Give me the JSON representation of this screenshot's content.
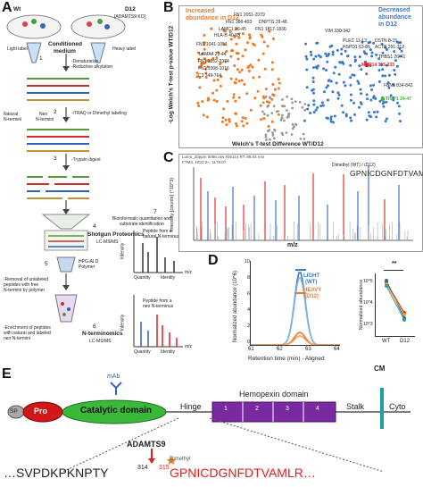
{
  "panels": {
    "A": "A",
    "B": "B",
    "C": "C",
    "D": "D",
    "E": "E"
  },
  "panel_a": {
    "wt": "Wt",
    "d12": "D12",
    "d12_sub": "[ADAMTS9 KO]",
    "light_label": "Light label",
    "heavy_label": "Heavy label",
    "conditioned": "Conditioned",
    "medium": "medium",
    "step1_a": "-Denaturation",
    "step1_b": "-Reductive alkylation",
    "step2": "-iTRAQ or Dimethyl labeling",
    "natural": "Natural",
    "nterm": "N-termini",
    "neo": "Neo",
    "neo_nterm": "N-termini",
    "step3": "-Trypsin digest",
    "num1": "1",
    "num2": "2",
    "num3": "3",
    "num4": "4",
    "num5": "5",
    "num6": "6",
    "num7": "7",
    "shotgun": "Shotgun Proteomics",
    "lcms1": "LC-MS/MS",
    "hpg": "HPG-ALD",
    "polymer": "Polymer",
    "removal1": "-Removal of unlabeled",
    "removal2": "peptides with free",
    "removal3": "N-termini by polymer",
    "enrich1": "-Enrichment of peptides",
    "enrich2": "with natural and labeled",
    "enrich3": "neo N-termini",
    "nterminomics": "N-terminomics",
    "lcms2": "LC-MS/MS",
    "bio1": "Bioinformatic quantitation and",
    "bio2": "substrate identification",
    "pep_free": "Peptide from a",
    "pep_free2": "natural N-terminus",
    "pep_neo": "Peptide from a",
    "pep_neo2": "neo N-terminus",
    "intensity": "Intensity",
    "quantity": "Quantity",
    "identity": "Identity",
    "mz": "m/z"
  },
  "panel_b": {
    "ylabel": "-Log Welch's T-test p-value WT/D12",
    "xlabel": "Welch's T-test Difference WT/D12",
    "inc1": "Increased",
    "inc2": "abundance in D12",
    "dec1": "Decreased",
    "dec2": "abundance",
    "dec3": "in D12",
    "labels": [
      {
        "t": "FN1 2051-2079",
        "c": "#111111"
      },
      {
        "t": "FN1 388-403",
        "c": "#111111"
      },
      {
        "t": "LAMC1 36-45",
        "c": "#111111"
      },
      {
        "t": "HLA-B 40-55",
        "c": "#111111"
      },
      {
        "t": "DNPTG 29-48",
        "c": "#111111"
      },
      {
        "t": "FN1 1817-1836",
        "c": "#111111"
      },
      {
        "t": "FN1 1041-1051",
        "c": "#111111"
      },
      {
        "t": "LAMA4 23-44",
        "c": "#111111"
      },
      {
        "t": "FN1 2352-2374",
        "c": "#111111"
      },
      {
        "t": "FN1 1008-1016",
        "c": "#111111"
      },
      {
        "t": "C3 749-764",
        "c": "#111111"
      },
      {
        "t": "VIM 330-342",
        "c": "#111111"
      },
      {
        "t": "PLEC 11-13",
        "c": "#111111"
      },
      {
        "t": "HSPD1 63-85",
        "c": "#111111"
      },
      {
        "t": "DSTN 8-15",
        "c": "#111111"
      },
      {
        "t": "ACTB 291-312",
        "c": "#111111"
      },
      {
        "t": "THBS1 26-41",
        "c": "#111111"
      },
      {
        "t": "MMP14 315-333",
        "c": "#e02020"
      },
      {
        "t": "FBN1 834-842",
        "c": "#111111"
      },
      {
        "t": "TIMP1 24-47",
        "c": "#30c030"
      }
    ]
  },
  "panel_c": {
    "ylabel": "Intensity [counts] (*10^3)",
    "xlabel": "m/z",
    "header1": "Lumo_20ppm 0066.raw  #25114  RT: 85.04 min",
    "header2": "FTMS, HCD  2+, 1178.07",
    "seqlabel": "Dimethyl (WT) / (D12)",
    "sequence": "GPNICDGNFDTVAMLR"
  },
  "panel_d": {
    "ylabel": "Normalized abundance (10^6)",
    "xlabel": "Retention time (min) - Aligned",
    "legend_light": "LIGHT",
    "legend_light_sub": "(WT)",
    "legend_heavy": "HEAVY",
    "legend_heavy_sub": "(D12)",
    "xticks": [
      "61",
      "62",
      "63",
      "64"
    ],
    "yticks": [
      "0",
      "2",
      "4",
      "6",
      "8",
      "10"
    ],
    "right_ylabel": "Normalized abundance",
    "right_yticks": [
      "10^5",
      "10^4",
      "10^3"
    ],
    "right_xticks": [
      "WT",
      "D12"
    ],
    "sig": "**"
  },
  "panel_e": {
    "mab": "mAb",
    "cm": "CM",
    "sp": "SP",
    "pro": "Pro",
    "catalytic": "Catalytic domain",
    "hinge": "Hinge",
    "hemopexin": "Hemopexin domain",
    "h1": "1",
    "h2": "2",
    "h3": "3",
    "h4": "4",
    "stalk": "Stalk",
    "cyto": "Cyto",
    "adamts9": "ADAMTS9",
    "dimethyl": "Dimethyl",
    "seq_left": "…SVPDKPKNPTY",
    "pos_left": "314",
    "pos_right": "315",
    "seq_right": "GPNICDGNFDTVAMLR…"
  },
  "colors": {
    "orange": "#f07820",
    "blue": "#3a78c8",
    "red": "#e02020",
    "green": "#30c030",
    "purple": "#7a2aa0",
    "catalytic_green": "#3ab83a",
    "pro_red": "#d01818",
    "cm_teal": "#1aa0a0"
  }
}
